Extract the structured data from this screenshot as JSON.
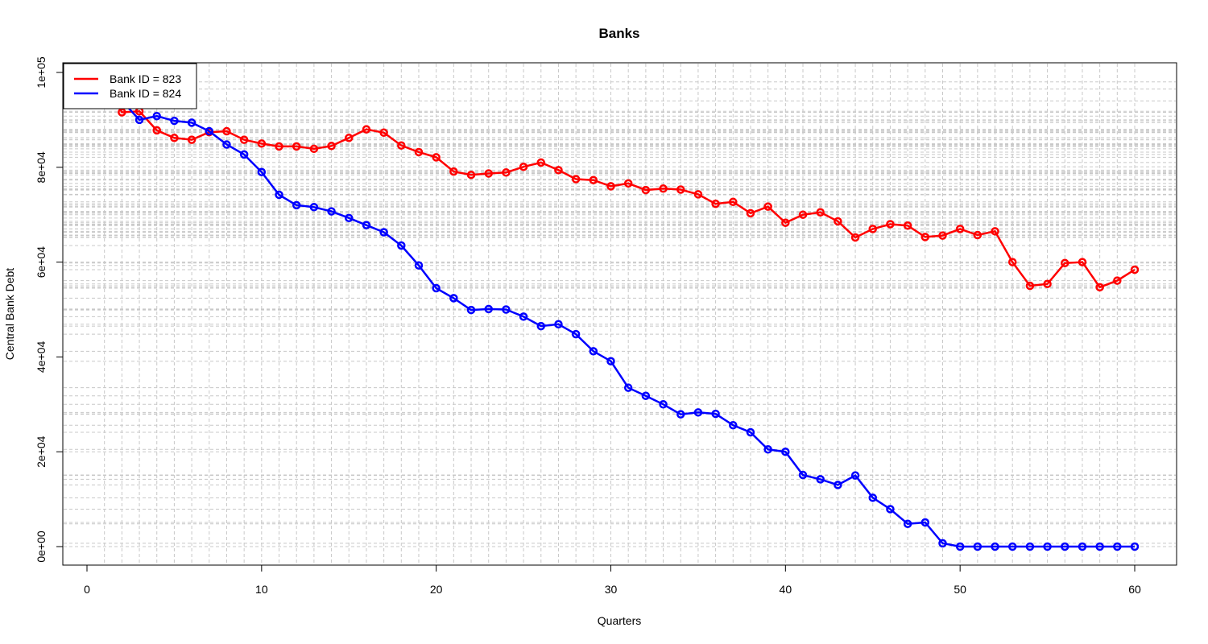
{
  "chart_data": {
    "type": "line",
    "title": "Banks",
    "xlabel": "Quarters",
    "ylabel": "Central Bank Debt",
    "xlim": [
      0,
      60
    ],
    "ylim": [
      0,
      100000
    ],
    "x_ticks": [
      0,
      10,
      20,
      30,
      40,
      50,
      60
    ],
    "x_tick_labels": [
      "0",
      "10",
      "20",
      "30",
      "40",
      "50",
      "60"
    ],
    "y_ticks": [
      0,
      20000,
      40000,
      60000,
      80000,
      100000
    ],
    "y_tick_labels": [
      "0e+00",
      "2e+04",
      "4e+04",
      "6e+04",
      "8e+04",
      "1e+05"
    ],
    "grid": true,
    "legend_position": "top-left",
    "x": [
      1,
      2,
      3,
      4,
      5,
      6,
      7,
      8,
      9,
      10,
      11,
      12,
      13,
      14,
      15,
      16,
      17,
      18,
      19,
      20,
      21,
      22,
      23,
      24,
      25,
      26,
      27,
      28,
      29,
      30,
      31,
      32,
      33,
      34,
      35,
      36,
      37,
      38,
      39,
      40,
      41,
      42,
      43,
      44,
      45,
      46,
      47,
      48,
      49,
      50,
      51,
      52,
      53,
      54,
      55,
      56,
      57,
      58,
      59,
      60
    ],
    "series": [
      {
        "name": "Bank ID = 823",
        "color": "#ff0000",
        "values": [
          98000,
          91600,
          91800,
          87800,
          86200,
          85800,
          87400,
          87600,
          85800,
          85000,
          84400,
          84400,
          83900,
          84500,
          86200,
          88000,
          87300,
          84600,
          83200,
          82100,
          79100,
          78400,
          78700,
          78900,
          80100,
          81000,
          79400,
          77500,
          77300,
          76000,
          76600,
          75200,
          75500,
          75300,
          74300,
          72300,
          72700,
          70300,
          71700,
          68300,
          70000,
          70500,
          68600,
          65200,
          67000,
          68000,
          67700,
          65300,
          65600,
          67000,
          65700,
          66500,
          60000,
          55000,
          55400,
          59800,
          60000,
          54700,
          56100,
          58400
        ]
      },
      {
        "name": "Bank ID = 824",
        "color": "#0000ff",
        "values": [
          96500,
          94000,
          90000,
          90800,
          89800,
          89400,
          87600,
          84800,
          82700,
          79000,
          74200,
          72000,
          71600,
          70700,
          69300,
          67800,
          66300,
          63500,
          59300,
          54500,
          52400,
          49900,
          50100,
          50000,
          48500,
          46500,
          46900,
          44800,
          41200,
          39100,
          33500,
          31800,
          30000,
          27900,
          28300,
          28000,
          25600,
          24100,
          20500,
          20000,
          15100,
          14200,
          13000,
          15000,
          10300,
          7900,
          4800,
          5100,
          700,
          0,
          0,
          0,
          0,
          0,
          0,
          0,
          0,
          0,
          0,
          0
        ]
      }
    ]
  }
}
